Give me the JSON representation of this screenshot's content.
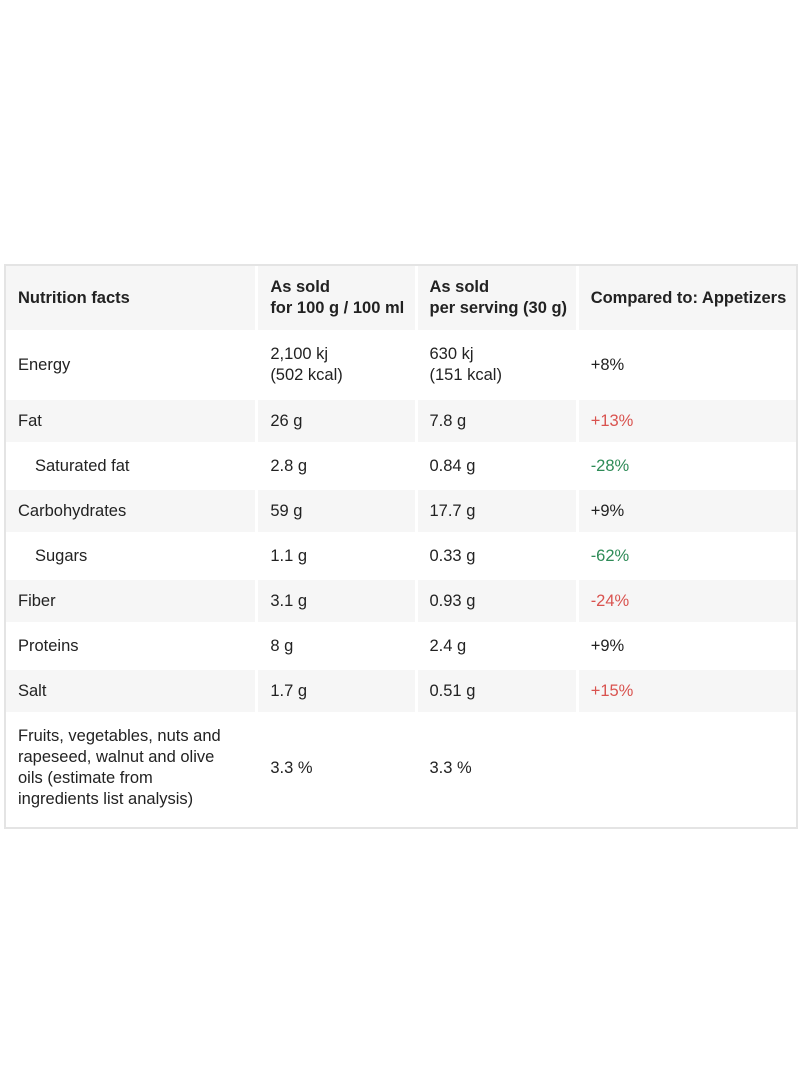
{
  "header": {
    "col1": "Nutrition facts",
    "col2_line1": "As sold",
    "col2_line2": "for 100 g / 100 ml",
    "col3_line1": "As sold",
    "col3_line2": "per serving (30 g)",
    "col4": "Compared to: Appetizers"
  },
  "rows": [
    {
      "name": "Energy",
      "per100_line1": "2,100 kj",
      "per100_line2": "(502 kcal)",
      "serving_line1": "630 kj",
      "serving_line2": "(151 kcal)",
      "compare": "+8%",
      "compare_status": "neutral"
    },
    {
      "name": "Fat",
      "per100": "26 g",
      "serving": "7.8 g",
      "compare": "+13%",
      "compare_status": "worse"
    },
    {
      "name": "Saturated fat",
      "per100": "2.8 g",
      "serving": "0.84 g",
      "compare": "-28%",
      "compare_status": "better"
    },
    {
      "name": "Carbohydrates",
      "per100": "59 g",
      "serving": "17.7 g",
      "compare": "+9%",
      "compare_status": "neutral"
    },
    {
      "name": "Sugars",
      "per100": "1.1 g",
      "serving": "0.33 g",
      "compare": "-62%",
      "compare_status": "better"
    },
    {
      "name": "Fiber",
      "per100": "3.1 g",
      "serving": "0.93 g",
      "compare": "-24%",
      "compare_status": "worse"
    },
    {
      "name": "Proteins",
      "per100": "8 g",
      "serving": "2.4 g",
      "compare": "+9%",
      "compare_status": "neutral"
    },
    {
      "name": "Salt",
      "per100": "1.7 g",
      "serving": "0.51 g",
      "compare": "+15%",
      "compare_status": "worse"
    },
    {
      "name_line1": "Fruits, vegetables, nuts and",
      "name_line2": "rapeseed, walnut and olive",
      "name_line3": "oils (estimate from",
      "name_line4": "ingredients list analysis)",
      "per100": "3.3 %",
      "serving": "3.3 %",
      "compare": ""
    }
  ],
  "colors": {
    "worse": "#d9534f",
    "better": "#2e8b57",
    "neutral": "#222222",
    "row_alt_background": "#f6f6f6",
    "border": "#e4e4e4"
  }
}
